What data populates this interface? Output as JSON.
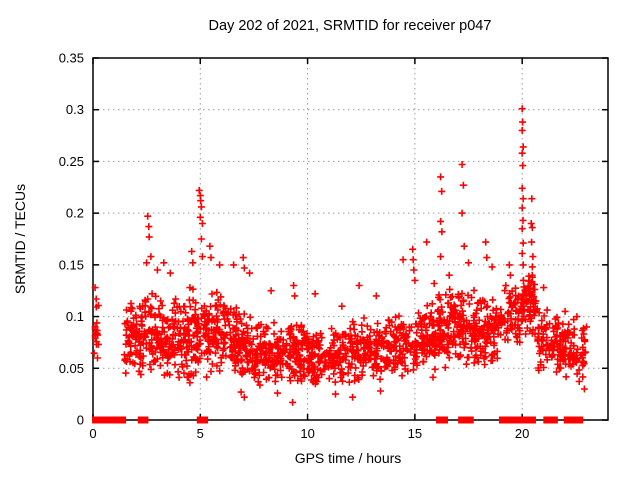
{
  "title": "Day 202 of 2021, SRMTID for receiver p047",
  "colors": {
    "marker": "#ff0000",
    "grid": "#9a9a9a",
    "axis": "#000000",
    "background": "#ffffff"
  },
  "chart_data": {
    "type": "scatter",
    "title": "Day 202 of 2021, SRMTID for receiver p047",
    "xlabel": "GPS time / hours",
    "ylabel": "SRMTID / TECUs",
    "xlim": [
      0,
      24
    ],
    "ylim": [
      0,
      0.35
    ],
    "xticks": [
      0,
      5,
      10,
      15,
      20
    ],
    "xtick_labels": [
      "0",
      "5",
      "10",
      "15",
      "20"
    ],
    "yticks": [
      0,
      0.05,
      0.1,
      0.15,
      0.2,
      0.25,
      0.3,
      0.35
    ],
    "ytick_labels": [
      "0",
      "0.05",
      "0.1",
      "0.15",
      "0.2",
      "0.25",
      "0.3",
      "0.35"
    ],
    "grid": true,
    "legend": "none",
    "marker": {
      "shape": "plus",
      "color": "#ff0000",
      "size": 7,
      "stroke": 1.6
    },
    "seed": 1337,
    "clusters": [
      [
        0.05,
        0.3,
        16,
        0.048,
        0.132
      ],
      [
        1.45,
        2.3,
        75,
        0.04,
        0.125
      ],
      [
        2.3,
        3.3,
        85,
        0.04,
        0.13
      ],
      [
        3.3,
        4.3,
        85,
        0.032,
        0.12
      ],
      [
        4.3,
        5.3,
        95,
        0.032,
        0.135
      ],
      [
        5.3,
        6.5,
        100,
        0.045,
        0.125
      ],
      [
        6.5,
        7.5,
        95,
        0.035,
        0.115
      ],
      [
        7.5,
        9.0,
        120,
        0.03,
        0.1
      ],
      [
        9.0,
        10.0,
        95,
        0.032,
        0.1
      ],
      [
        10.0,
        11.0,
        80,
        0.03,
        0.09
      ],
      [
        11.0,
        12.0,
        80,
        0.032,
        0.095
      ],
      [
        12.0,
        13.5,
        115,
        0.035,
        0.1
      ],
      [
        13.5,
        15.0,
        105,
        0.04,
        0.105
      ],
      [
        15.0,
        16.0,
        95,
        0.04,
        0.115
      ],
      [
        16.0,
        17.0,
        95,
        0.05,
        0.13
      ],
      [
        17.0,
        18.0,
        95,
        0.05,
        0.13
      ],
      [
        18.0,
        19.0,
        85,
        0.05,
        0.125
      ],
      [
        19.0,
        19.9,
        65,
        0.065,
        0.135
      ],
      [
        19.95,
        20.65,
        75,
        0.08,
        0.148
      ],
      [
        20.7,
        21.7,
        75,
        0.045,
        0.11
      ],
      [
        21.7,
        22.45,
        60,
        0.04,
        0.1
      ],
      [
        22.5,
        22.95,
        30,
        0.035,
        0.095
      ]
    ],
    "points": [
      [
        0.1,
        0.128
      ],
      [
        0.15,
        0.117
      ],
      [
        2.5,
        0.152
      ],
      [
        2.55,
        0.197
      ],
      [
        2.6,
        0.187
      ],
      [
        2.62,
        0.177
      ],
      [
        2.7,
        0.158
      ],
      [
        3.0,
        0.145
      ],
      [
        3.3,
        0.152
      ],
      [
        3.6,
        0.142
      ],
      [
        4.6,
        0.163
      ],
      [
        4.65,
        0.152
      ],
      [
        4.95,
        0.222
      ],
      [
        5.0,
        0.217
      ],
      [
        5.02,
        0.212
      ],
      [
        5.05,
        0.206
      ],
      [
        5.0,
        0.196
      ],
      [
        5.1,
        0.19
      ],
      [
        5.05,
        0.175
      ],
      [
        5.1,
        0.158
      ],
      [
        5.45,
        0.168
      ],
      [
        5.5,
        0.157
      ],
      [
        5.9,
        0.15
      ],
      [
        6.55,
        0.15
      ],
      [
        7.0,
        0.157
      ],
      [
        7.05,
        0.147
      ],
      [
        7.3,
        0.142
      ],
      [
        6.9,
        0.027
      ],
      [
        7.05,
        0.022
      ],
      [
        8.6,
        0.026
      ],
      [
        9.3,
        0.017
      ],
      [
        11.3,
        0.025
      ],
      [
        12.1,
        0.022
      ],
      [
        13.4,
        0.028
      ],
      [
        8.3,
        0.125
      ],
      [
        9.35,
        0.13
      ],
      [
        9.4,
        0.12
      ],
      [
        10.35,
        0.122
      ],
      [
        11.6,
        0.11
      ],
      [
        12.4,
        0.13
      ],
      [
        13.2,
        0.12
      ],
      [
        14.45,
        0.155
      ],
      [
        14.9,
        0.165
      ],
      [
        14.92,
        0.155
      ],
      [
        14.95,
        0.145
      ],
      [
        15.0,
        0.135
      ],
      [
        15.55,
        0.172
      ],
      [
        15.9,
        0.132
      ],
      [
        16.2,
        0.235
      ],
      [
        16.25,
        0.221
      ],
      [
        16.2,
        0.192
      ],
      [
        16.26,
        0.182
      ],
      [
        16.2,
        0.158
      ],
      [
        16.6,
        0.14
      ],
      [
        17.2,
        0.247
      ],
      [
        17.26,
        0.227
      ],
      [
        17.2,
        0.2
      ],
      [
        17.3,
        0.168
      ],
      [
        17.5,
        0.152
      ],
      [
        18.3,
        0.172
      ],
      [
        18.35,
        0.157
      ],
      [
        18.6,
        0.148
      ],
      [
        19.4,
        0.15
      ],
      [
        19.45,
        0.14
      ],
      [
        20.0,
        0.301
      ],
      [
        20.02,
        0.288
      ],
      [
        20.0,
        0.28
      ],
      [
        20.05,
        0.264
      ],
      [
        20.0,
        0.258
      ],
      [
        20.03,
        0.246
      ],
      [
        20.0,
        0.224
      ],
      [
        20.05,
        0.214
      ],
      [
        20.0,
        0.205
      ],
      [
        20.04,
        0.193
      ],
      [
        20.0,
        0.185
      ],
      [
        20.05,
        0.171
      ],
      [
        20.0,
        0.161
      ],
      [
        20.05,
        0.15
      ],
      [
        20.45,
        0.214
      ],
      [
        20.42,
        0.19
      ],
      [
        20.47,
        0.186
      ],
      [
        20.44,
        0.172
      ],
      [
        20.5,
        0.158
      ],
      [
        20.47,
        0.148
      ],
      [
        21.0,
        0.128
      ],
      [
        22.0,
        0.105
      ],
      [
        22.55,
        0.1
      ],
      [
        23.0,
        0.09
      ],
      [
        22.9,
        0.03
      ]
    ],
    "zero_runs": [
      [
        0.12,
        0.3
      ],
      [
        0.42,
        0.55
      ],
      [
        0.68,
        1.38
      ],
      [
        2.25,
        2.42
      ],
      [
        5.0,
        5.2
      ],
      [
        16.15,
        16.38
      ],
      [
        17.18,
        17.58
      ],
      [
        19.08,
        19.33
      ],
      [
        19.55,
        19.82
      ],
      [
        20.02,
        20.48
      ],
      [
        21.15,
        21.5
      ],
      [
        22.1,
        22.68
      ]
    ]
  }
}
